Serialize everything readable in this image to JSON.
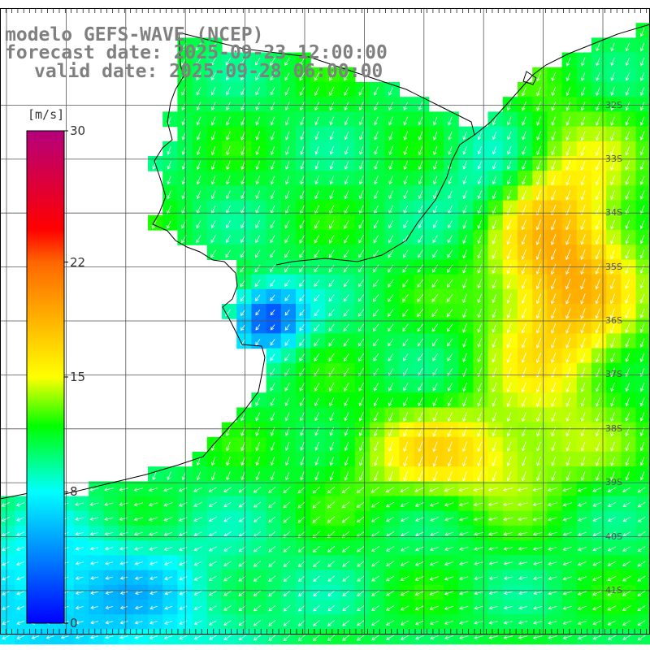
{
  "header": {
    "model_line": "modelo GEFS-WAVE (NCEP)",
    "forecast_line": "forecast date: 2025-09-23 12:00:00",
    "valid_line": "valid date: 2025-09-28 06:00:00"
  },
  "colorbar": {
    "unit": "[m/s]",
    "min": 0,
    "max": 30,
    "tick_labels": [
      "30",
      "22",
      "15",
      "8",
      "0"
    ],
    "tick_values": [
      30,
      22,
      15,
      8,
      0
    ],
    "stops": [
      {
        "value": 0,
        "color": "#0000ff"
      },
      {
        "value": 8,
        "color": "#00ffff"
      },
      {
        "value": 12,
        "color": "#00ff00"
      },
      {
        "value": 15,
        "color": "#ffff00"
      },
      {
        "value": 22,
        "color": "#ff6600"
      },
      {
        "value": 24,
        "color": "#ff0000"
      },
      {
        "value": 30,
        "color": "#b4007c"
      }
    ]
  },
  "map": {
    "latitude_labels": [
      "32S",
      "33S",
      "34S",
      "35S",
      "36S",
      "37S",
      "38S",
      "39S",
      "40S",
      "41S"
    ],
    "latitude_values": [
      -32,
      -33,
      -34,
      -35,
      -36,
      -37,
      -38,
      -39,
      -40,
      -41
    ],
    "latitude_range": [
      -41.8,
      -30.2
    ],
    "longitude_range": [
      -62,
      -51.2
    ]
  }
}
